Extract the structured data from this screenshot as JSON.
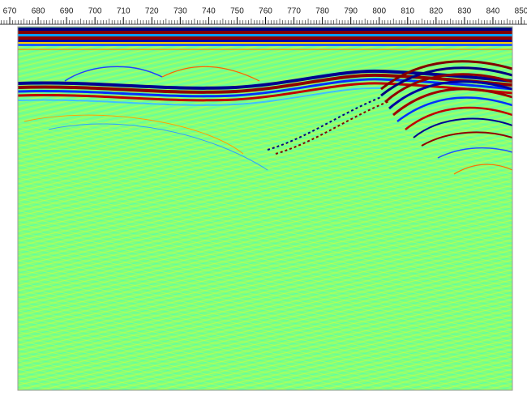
{
  "chart_data": {
    "type": "radargram",
    "xlim": [
      670,
      850
    ],
    "xticks": [
      670,
      680,
      690,
      700,
      710,
      720,
      730,
      740,
      750,
      760,
      770,
      780,
      790,
      800,
      810,
      820,
      830,
      840,
      850
    ]
  }
}
